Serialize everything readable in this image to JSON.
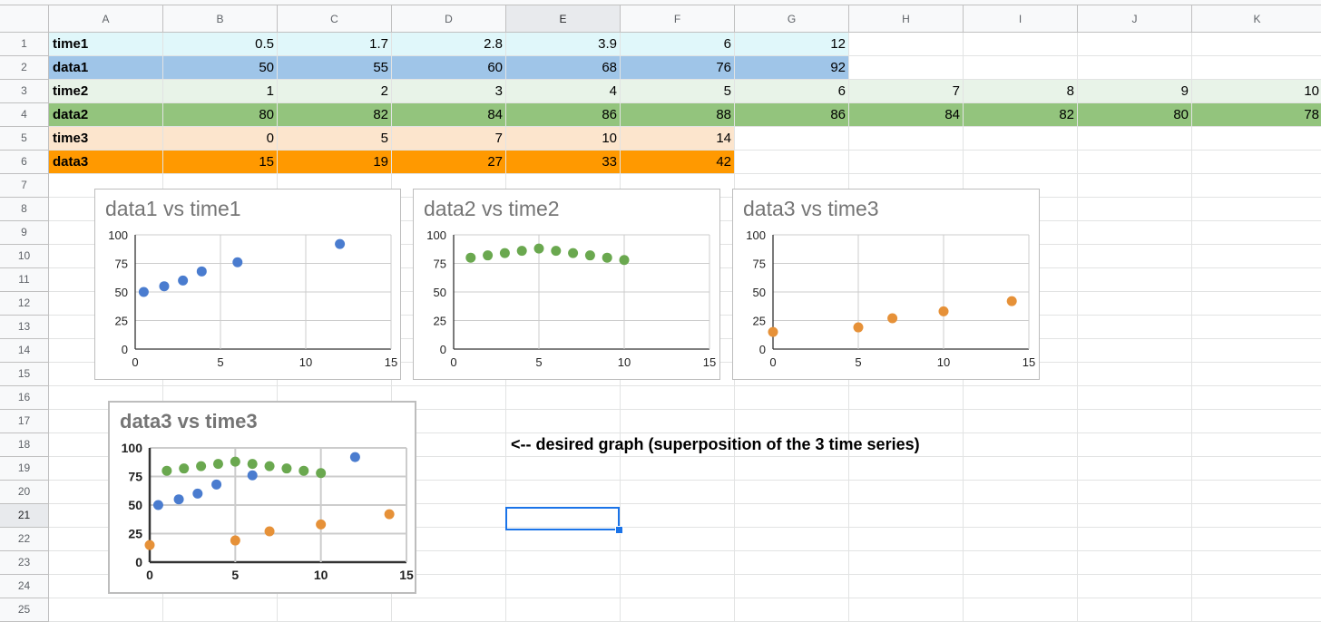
{
  "spreadsheet": {
    "columns": [
      "A",
      "B",
      "C",
      "D",
      "E",
      "F",
      "G",
      "H",
      "I",
      "J",
      "K"
    ],
    "active_column": "E",
    "rows": [
      "1",
      "2",
      "3",
      "4",
      "5",
      "6",
      "7",
      "8",
      "9",
      "10",
      "11",
      "12",
      "13",
      "14",
      "15",
      "16",
      "17",
      "18",
      "19",
      "20",
      "21",
      "22",
      "23",
      "24",
      "25"
    ],
    "active_row": "21",
    "data_rows": [
      {
        "label": "time1",
        "values": [
          "0.5",
          "1.7",
          "2.8",
          "3.9",
          "6",
          "12"
        ],
        "fill": "#e0f7fa"
      },
      {
        "label": "data1",
        "values": [
          "50",
          "55",
          "60",
          "68",
          "76",
          "92"
        ],
        "fill": "#9fc5e8"
      },
      {
        "label": "time2",
        "values": [
          "1",
          "2",
          "3",
          "4",
          "5",
          "6",
          "7",
          "8",
          "9",
          "10"
        ],
        "fill": "#e8f3e8"
      },
      {
        "label": "data2",
        "values": [
          "80",
          "82",
          "84",
          "86",
          "88",
          "86",
          "84",
          "82",
          "80",
          "78"
        ],
        "fill": "#93c47d"
      },
      {
        "label": "time3",
        "values": [
          "0",
          "5",
          "7",
          "10",
          "14"
        ],
        "fill": "#fce5cd"
      },
      {
        "label": "data3",
        "values": [
          "15",
          "19",
          "27",
          "33",
          "42"
        ],
        "fill": "#ff9900"
      }
    ]
  },
  "annotation": "<-- desired graph (superposition of the 3 time series)",
  "colors": {
    "blue": "#4a7ccf",
    "green": "#6aa84f",
    "orange": "#e69138",
    "grid": "#cccccc",
    "axis": "#333333"
  },
  "chart_data": [
    {
      "type": "scatter",
      "title": "data1 vs time1",
      "xlim": [
        0,
        15
      ],
      "ylim": [
        0,
        100
      ],
      "xticks": [
        0,
        5,
        10,
        15
      ],
      "yticks": [
        0,
        25,
        50,
        75,
        100
      ],
      "series": [
        {
          "x": [
            0.5,
            1.7,
            2.8,
            3.9,
            6,
            12
          ],
          "y": [
            50,
            55,
            60,
            68,
            76,
            92
          ],
          "color": "#4a7ccf"
        }
      ]
    },
    {
      "type": "scatter",
      "title": "data2 vs time2",
      "xlim": [
        0,
        15
      ],
      "ylim": [
        0,
        100
      ],
      "xticks": [
        0,
        5,
        10,
        15
      ],
      "yticks": [
        0,
        25,
        50,
        75,
        100
      ],
      "series": [
        {
          "x": [
            1,
            2,
            3,
            4,
            5,
            6,
            7,
            8,
            9,
            10
          ],
          "y": [
            80,
            82,
            84,
            86,
            88,
            86,
            84,
            82,
            80,
            78
          ],
          "color": "#6aa84f"
        }
      ]
    },
    {
      "type": "scatter",
      "title": "data3 vs time3",
      "xlim": [
        0,
        15
      ],
      "ylim": [
        0,
        100
      ],
      "xticks": [
        0,
        5,
        10,
        15
      ],
      "yticks": [
        0,
        25,
        50,
        75,
        100
      ],
      "series": [
        {
          "x": [
            0,
            5,
            7,
            10,
            14
          ],
          "y": [
            15,
            19,
            27,
            33,
            42
          ],
          "color": "#e69138"
        }
      ]
    },
    {
      "type": "scatter",
      "title": "data3 vs time3",
      "xlim": [
        0,
        15
      ],
      "ylim": [
        0,
        100
      ],
      "xticks": [
        0,
        5,
        10,
        15
      ],
      "yticks": [
        0,
        25,
        50,
        75,
        100
      ],
      "series": [
        {
          "x": [
            0.5,
            1.7,
            2.8,
            3.9,
            6,
            12
          ],
          "y": [
            50,
            55,
            60,
            68,
            76,
            92
          ],
          "color": "#4a7ccf"
        },
        {
          "x": [
            1,
            2,
            3,
            4,
            5,
            6,
            7,
            8,
            9,
            10
          ],
          "y": [
            80,
            82,
            84,
            86,
            88,
            86,
            84,
            82,
            80,
            78
          ],
          "color": "#6aa84f"
        },
        {
          "x": [
            0,
            5,
            7,
            10,
            14
          ],
          "y": [
            15,
            19,
            27,
            33,
            42
          ],
          "color": "#e69138"
        }
      ]
    }
  ]
}
